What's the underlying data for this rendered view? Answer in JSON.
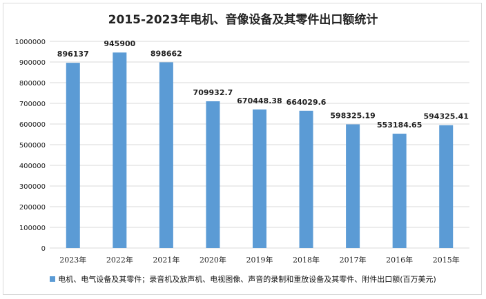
{
  "chart_data": {
    "type": "bar",
    "title": "2015-2023年电机、音像设备及其零件出口额统计",
    "categories": [
      "2023年",
      "2022年",
      "2021年",
      "2020年",
      "2019年",
      "2018年",
      "2017年",
      "2016年",
      "2015年"
    ],
    "series": [
      {
        "name": "电机、电气设备及其零件；录音机及放声机、电视图像、声音的录制和重放设备及其零件、附件出口额(百万美元)",
        "values": [
          896137,
          945900,
          898662,
          709932.7,
          670448.38,
          664029.6,
          598325.19,
          553184.65,
          594325.41
        ],
        "labels": [
          "896137",
          "945900",
          "898662",
          "709932.7",
          "670448.38",
          "664029.6",
          "598325.19",
          "553184.65",
          "594325.41"
        ]
      }
    ],
    "ylim": [
      0,
      1000000
    ],
    "yticks": [
      0,
      100000,
      200000,
      300000,
      400000,
      500000,
      600000,
      700000,
      800000,
      900000,
      1000000
    ],
    "grid": true,
    "legend_position": "bottom",
    "bar_color": "#5b9bd5",
    "grid_color": "#d9d9d9"
  }
}
